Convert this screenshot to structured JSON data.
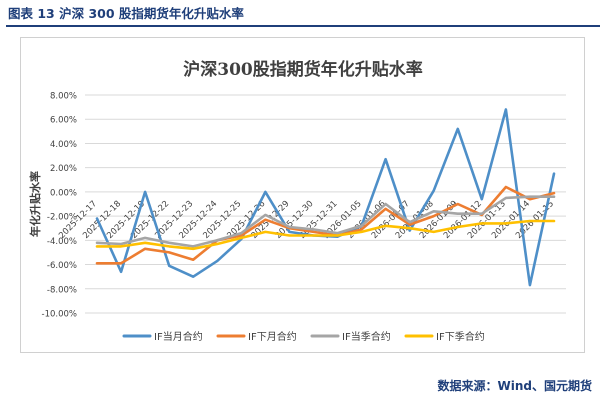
{
  "caption": "图表 13  沪深 300 股指期货年化升贴水率",
  "source": "数据来源：Wind、国元期货",
  "chart_data": {
    "type": "line",
    "title": "沪深300股指期货年化升贴水率",
    "ylabel": "年化升贴水率",
    "xlabel": "",
    "ylim": [
      -10,
      8
    ],
    "yticks": [
      8,
      6,
      4,
      2,
      0,
      -2,
      -4,
      -6,
      -8,
      -10
    ],
    "yticklabels": [
      "8.00%",
      "6.00%",
      "4.00%",
      "2.00%",
      "0.00%",
      "-2.00%",
      "-4.00%",
      "-6.00%",
      "-8.00%",
      "-10.00%"
    ],
    "grid": true,
    "legend_position": "bottom",
    "categories": [
      "2025-12-17",
      "2025-12-18",
      "2025-12-19",
      "2025-12-22",
      "2025-12-23",
      "2025-12-24",
      "2025-12-25",
      "2025-12-26",
      "2025-12-29",
      "2025-12-30",
      "2025-12-31",
      "2026-01-05",
      "2026-01-06",
      "2026-01-07",
      "2026-01-08",
      "2026-01-09",
      "2026-01-12",
      "2026-01-13",
      "2026-01-14",
      "2026-01-15"
    ],
    "series": [
      {
        "name": "IF当月合约",
        "color": "#4e8fc8",
        "values": [
          -2.2,
          -6.6,
          0.0,
          -6.1,
          -7.0,
          -5.7,
          -3.9,
          0.0,
          -3.3,
          -3.6,
          -3.7,
          -2.8,
          2.7,
          -3.2,
          0.1,
          5.2,
          -0.6,
          6.8,
          -7.7,
          1.5
        ]
      },
      {
        "name": "IF下月合约",
        "color": "#ed7d31",
        "values": [
          -5.9,
          -5.9,
          -4.7,
          -5.0,
          -5.6,
          -4.0,
          -3.6,
          -2.3,
          -3.0,
          -3.3,
          -3.6,
          -3.1,
          -1.4,
          -2.7,
          -2.0,
          -1.0,
          -1.9,
          0.4,
          -0.6,
          -0.1
        ]
      },
      {
        "name": "IF当季合约",
        "color": "#a5a5a5",
        "values": [
          -4.2,
          -4.3,
          -3.8,
          -4.2,
          -4.5,
          -4.0,
          -3.4,
          -1.9,
          -2.9,
          -3.1,
          -3.4,
          -2.8,
          -1.0,
          -2.5,
          -1.6,
          -1.8,
          -1.8,
          -0.5,
          -0.4,
          -0.4
        ]
      },
      {
        "name": "IF下季合约",
        "color": "#ffc000",
        "values": [
          -4.5,
          -4.5,
          -4.2,
          -4.5,
          -4.7,
          -4.3,
          -3.8,
          -3.3,
          -3.6,
          -3.6,
          -3.6,
          -3.3,
          -2.8,
          -3.0,
          -3.3,
          -2.9,
          -2.6,
          -2.6,
          -2.4,
          -2.4
        ]
      }
    ]
  }
}
